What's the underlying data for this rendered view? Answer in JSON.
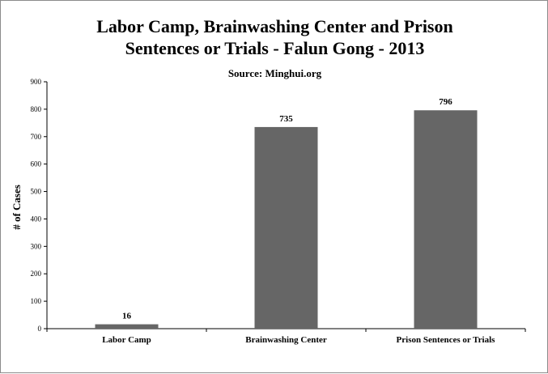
{
  "chart_data": {
    "type": "bar",
    "title_lines": [
      "Labor Camp, Brainwashing Center and Prison",
      "Sentences or Trials - Falun Gong - 2013"
    ],
    "subtitle": "Source: Minghui.org",
    "xlabel": "",
    "ylabel": "# of Cases",
    "categories": [
      "Labor Camp",
      "Brainwashing Center",
      "Prison Sentences or Trials"
    ],
    "values": [
      16,
      735,
      796
    ],
    "data_labels": [
      "16",
      "735",
      "796"
    ],
    "ylim": [
      0,
      900
    ],
    "yticks": [
      0,
      100,
      200,
      300,
      400,
      500,
      600,
      700,
      800,
      900
    ],
    "bar_color": "#666666",
    "grid": false,
    "legend": "none"
  }
}
